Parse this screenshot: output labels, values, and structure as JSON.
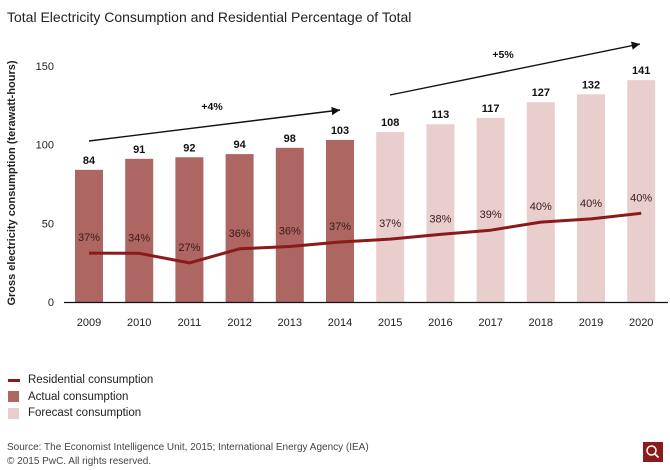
{
  "title": "Total Electricity Consumption and Residential Percentage of Total",
  "chart_data": {
    "type": "bar",
    "title": "Total Electricity Consumption and Residential Percentage of Total",
    "xlabel": "",
    "ylabel": "Gross electricity consumption (terawatt-hours)",
    "ylim": [
      0,
      150
    ],
    "yticks": [
      0,
      50,
      100,
      150
    ],
    "grid": false,
    "categories": [
      "2009",
      "2010",
      "2011",
      "2012",
      "2013",
      "2014",
      "2015",
      "2016",
      "2017",
      "2018",
      "2019",
      "2020"
    ],
    "series": [
      {
        "name": "Total consumption",
        "type": "bar",
        "values": [
          84,
          91,
          92,
          94,
          98,
          103,
          108,
          113,
          117,
          127,
          132,
          141
        ],
        "status": [
          "actual",
          "actual",
          "actual",
          "actual",
          "actual",
          "actual",
          "forecast",
          "forecast",
          "forecast",
          "forecast",
          "forecast",
          "forecast"
        ]
      },
      {
        "name": "Residential consumption",
        "type": "line",
        "share_percent": [
          37,
          34,
          27,
          36,
          36,
          37,
          37,
          38,
          39,
          40,
          40,
          40
        ],
        "labels": [
          "37%",
          "34%",
          "27%",
          "36%",
          "36%",
          "37%",
          "37%",
          "38%",
          "39%",
          "40%",
          "40%",
          "40%"
        ]
      }
    ],
    "annotations": [
      {
        "text": "+4%",
        "from_category": "2009",
        "to_category": "2014",
        "type": "arrow"
      },
      {
        "text": "+5%",
        "from_category": "2015",
        "to_category": "2020",
        "type": "arrow"
      }
    ],
    "legend": {
      "placement": "bottom-left",
      "items": [
        {
          "label": "Residential consumption",
          "kind": "line",
          "color": "#8b1a1a"
        },
        {
          "label": "Actual consumption",
          "kind": "box",
          "color": "#ae6662"
        },
        {
          "label": "Forecast consumption",
          "kind": "box",
          "color": "#e8cfcd"
        }
      ]
    }
  },
  "colors": {
    "actual": "#ae6662",
    "forecast": "#e8cfcd",
    "line": "#8b1a1a",
    "zoom_button": "#8b1a1a"
  },
  "footer": {
    "source": "Source: The Economist Intelligence Unit, 2015; International Energy Agency (IEA)",
    "copyright": "© 2015 PwC. All rights reserved."
  },
  "zoom_button": {
    "icon": "magnifier-icon"
  }
}
